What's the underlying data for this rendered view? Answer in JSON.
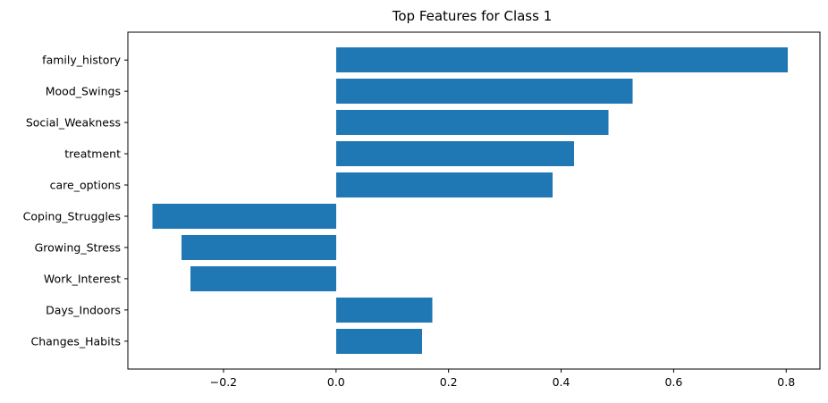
{
  "chart_data": {
    "type": "bar",
    "orientation": "horizontal",
    "title": "Top Features for Class 1",
    "xlabel": "",
    "ylabel": "",
    "categories": [
      "family_history",
      "Mood_Swings",
      "Social_Weakness",
      "treatment",
      "care_options",
      "Coping_Struggles",
      "Growing_Stress",
      "Work_Interest",
      "Days_Indoors",
      "Changes_Habits"
    ],
    "values": [
      0.803,
      0.527,
      0.484,
      0.423,
      0.385,
      -0.326,
      -0.275,
      -0.259,
      0.171,
      0.153
    ],
    "xlim": [
      -0.37,
      0.86
    ],
    "xticks": [
      -0.2,
      0.0,
      0.2,
      0.4,
      0.6,
      0.8
    ],
    "xtick_labels": [
      "−0.2",
      "0.0",
      "0.2",
      "0.4",
      "0.6",
      "0.8"
    ],
    "bar_color": "#1f77b4",
    "grid": false,
    "legend": false
  }
}
